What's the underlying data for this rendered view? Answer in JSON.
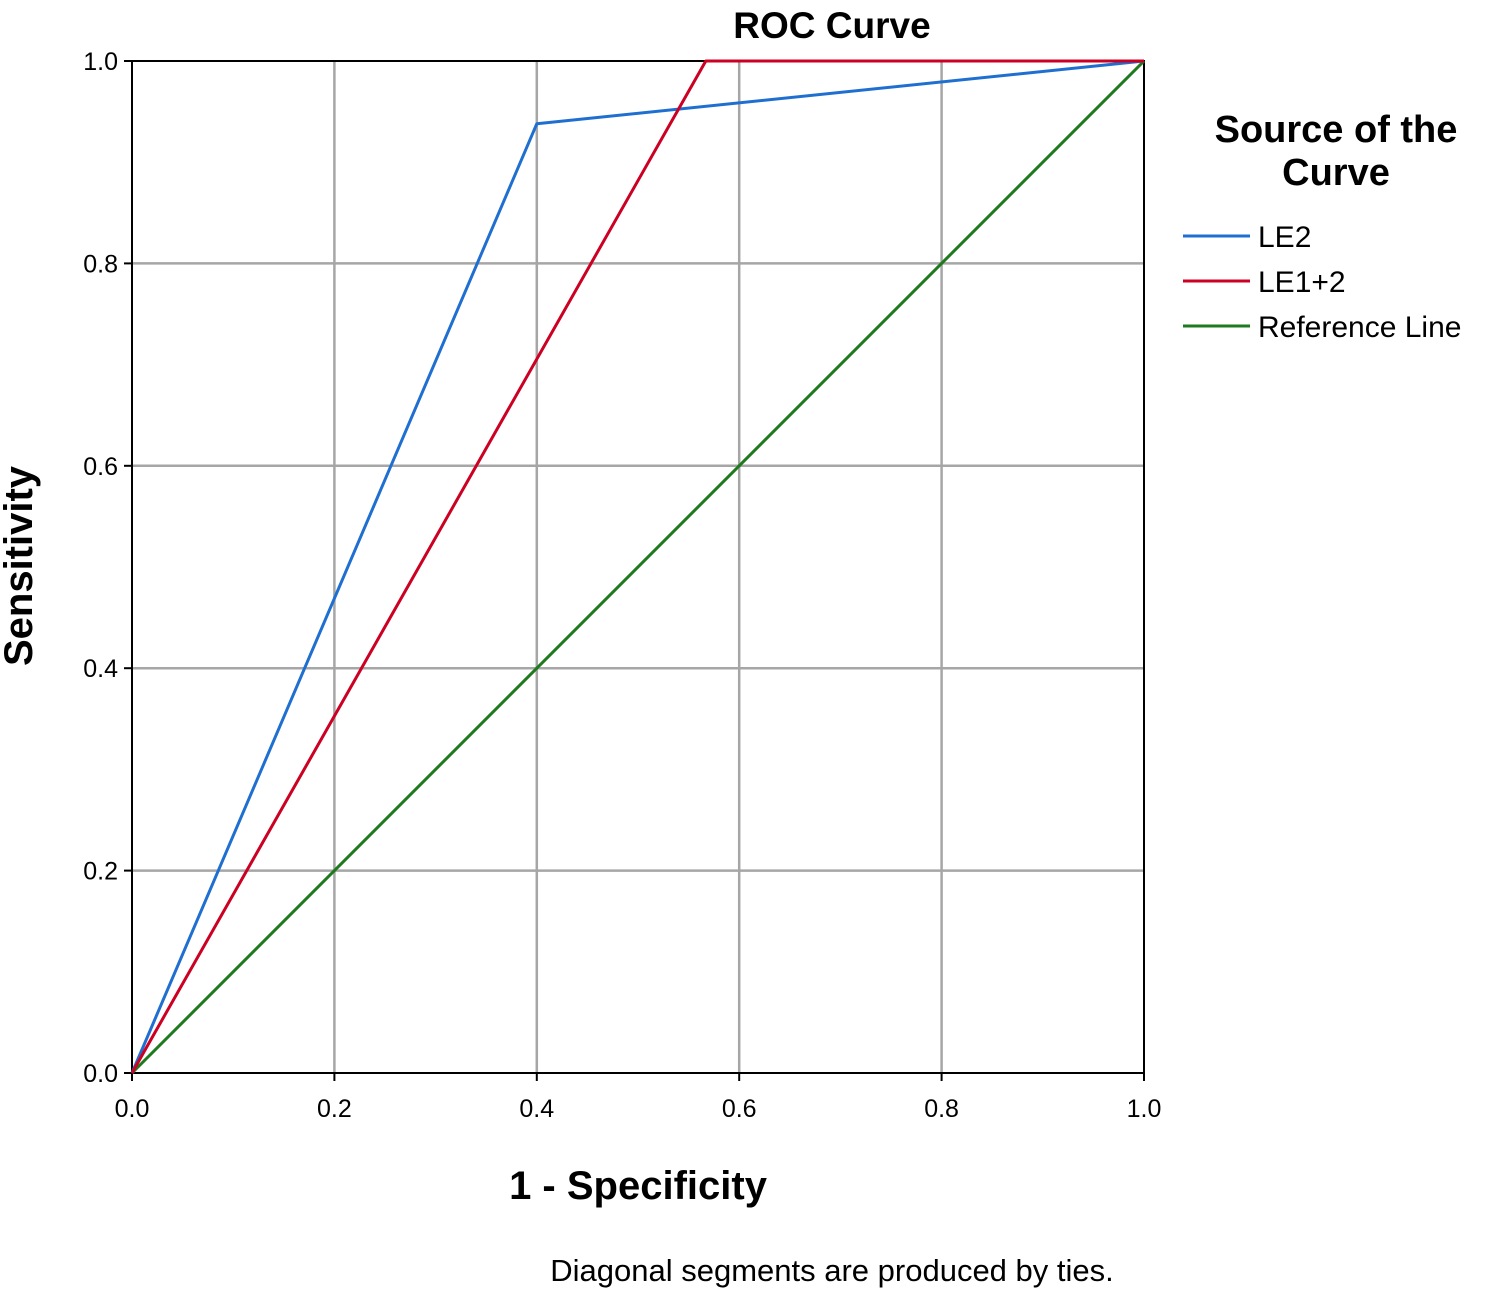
{
  "chart_data": {
    "type": "line",
    "title": "ROC Curve",
    "xlabel": "1 - Specificity",
    "ylabel": "Sensitivity",
    "xlim": [
      0.0,
      1.0
    ],
    "ylim": [
      0.0,
      1.0
    ],
    "x_ticks": [
      "0.0",
      "0.2",
      "0.4",
      "0.6",
      "0.8",
      "1.0"
    ],
    "y_ticks": [
      "0.0",
      "0.2",
      "0.4",
      "0.6",
      "0.8",
      "1.0"
    ],
    "grid": true,
    "legend": {
      "title_lines": [
        "Source of the",
        "Curve"
      ],
      "placement": "right"
    },
    "series": [
      {
        "name": "LE2",
        "color": "#1f6fd1",
        "x": [
          0.0,
          0.4,
          1.0
        ],
        "y": [
          0.0,
          0.938,
          1.0
        ]
      },
      {
        "name": "LE1+2",
        "color": "#cc0022",
        "x": [
          0.0,
          0.567,
          1.0
        ],
        "y": [
          0.0,
          1.0,
          1.0
        ]
      },
      {
        "name": "Reference Line",
        "color": "#1e7a1e",
        "x": [
          0.0,
          1.0
        ],
        "y": [
          0.0,
          1.0
        ]
      }
    ],
    "footnote": "Diagonal segments are produced by ties."
  }
}
